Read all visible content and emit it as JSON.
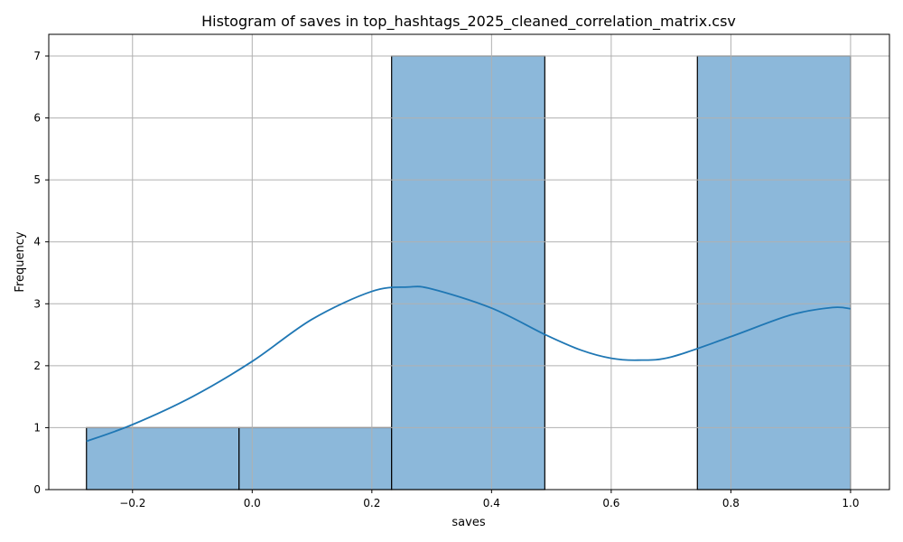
{
  "chart_data": {
    "type": "bar",
    "title": "Histogram of saves in top_hashtags_2025_cleaned_correlation_matrix.csv",
    "xlabel": "saves",
    "ylabel": "Frequency",
    "xlim": [
      -0.34,
      1.065
    ],
    "ylim": [
      0,
      7.35
    ],
    "xticks": [
      -0.2,
      0.0,
      0.2,
      0.4,
      0.6,
      0.8,
      1.0
    ],
    "xtick_labels": [
      "−0.2",
      "0.0",
      "0.2",
      "0.4",
      "0.6",
      "0.8",
      "1.0"
    ],
    "yticks": [
      0,
      1,
      2,
      3,
      4,
      5,
      6,
      7
    ],
    "ytick_labels": [
      "0",
      "1",
      "2",
      "3",
      "4",
      "5",
      "6",
      "7"
    ],
    "grid": true,
    "bins": [
      {
        "x0": -0.277,
        "x1": -0.022,
        "count": 1
      },
      {
        "x0": -0.022,
        "x1": 0.233,
        "count": 1
      },
      {
        "x0": 0.233,
        "x1": 0.489,
        "count": 7
      },
      {
        "x0": 0.489,
        "x1": 0.744,
        "count": 0
      },
      {
        "x0": 0.744,
        "x1": 1.0,
        "count": 7
      }
    ],
    "bar_color": "#8cb8da",
    "kde_color": "#1f77b4",
    "kde": {
      "x": [
        -0.277,
        -0.2,
        -0.1,
        0.0,
        0.1,
        0.2,
        0.26,
        0.3,
        0.4,
        0.49,
        0.55,
        0.6,
        0.645,
        0.7,
        0.8,
        0.9,
        0.97,
        1.0
      ],
      "y": [
        0.78,
        1.05,
        1.5,
        2.07,
        2.75,
        3.2,
        3.27,
        3.24,
        2.93,
        2.5,
        2.25,
        2.12,
        2.09,
        2.14,
        2.47,
        2.82,
        2.94,
        2.92
      ]
    }
  }
}
